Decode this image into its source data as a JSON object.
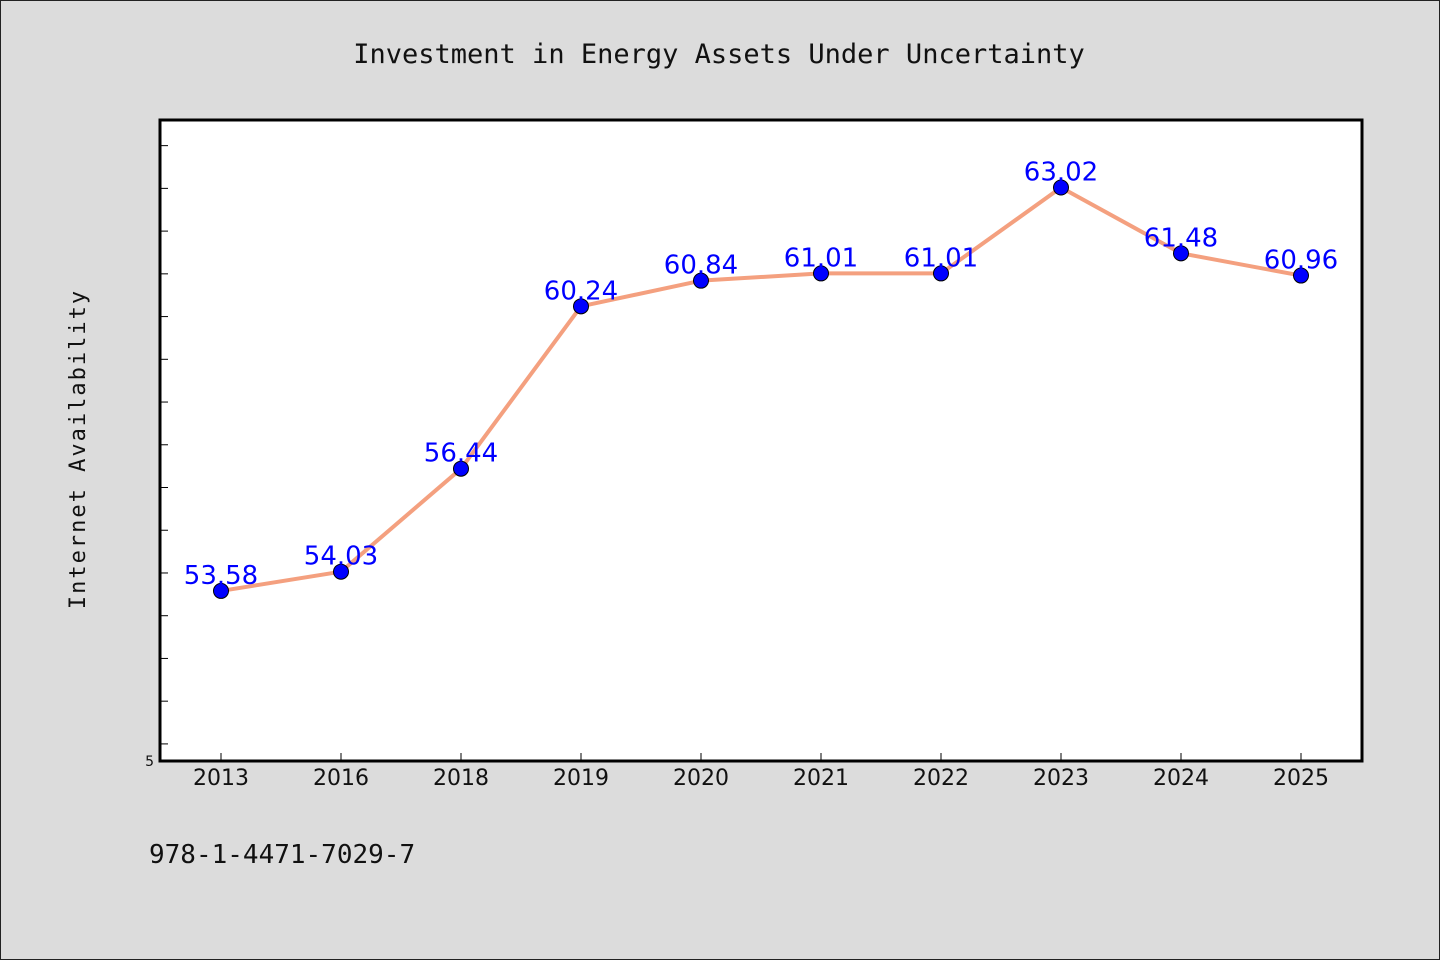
{
  "footnote": "978-1-4471-7029-7",
  "colors": {
    "background": "#dcdcdc",
    "plot_background": "#ffffff",
    "line": "#f4a07f",
    "marker": "#0000ff",
    "label": "#0000ff"
  },
  "chart_data": {
    "type": "line",
    "title": "Investment in Energy Assets Under Uncertainty",
    "xlabel": "",
    "ylabel": "Internet Availability",
    "categories": [
      "2013",
      "2016",
      "2018",
      "2019",
      "2020",
      "2021",
      "2022",
      "2023",
      "2024",
      "2025"
    ],
    "series": [
      {
        "values": [
          53.58,
          54.03,
          56.44,
          60.24,
          60.84,
          61.01,
          61.01,
          63.02,
          61.48,
          60.96
        ]
      }
    ],
    "data_labels": [
      "53.58",
      "54.03",
      "56.44",
      "60.24",
      "60.84",
      "61.01",
      "61.01",
      "63.02",
      "61.48",
      "60.96"
    ],
    "y_tick_labels": [
      "5"
    ],
    "ylim": [
      49.6,
      64.6
    ],
    "y_minor_tick_step": 1,
    "grid": false,
    "legend": "none"
  }
}
